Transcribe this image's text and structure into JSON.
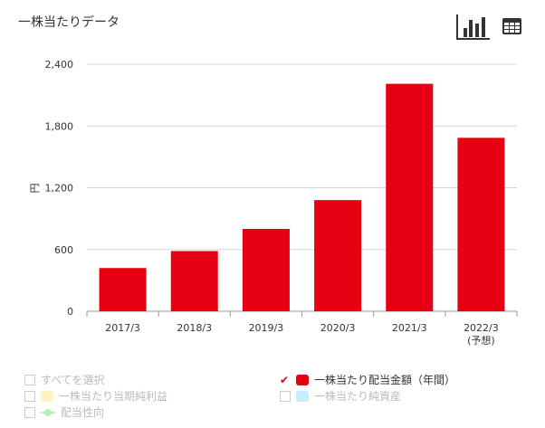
{
  "header": {
    "title": "一株当たりデータ",
    "chart_view_icon": "bar-chart-icon",
    "table_view_icon": "table-icon"
  },
  "chart_data": {
    "type": "bar",
    "title": "",
    "ylabel": "円",
    "xlabel": "",
    "ylim": [
      0,
      2400
    ],
    "yticks": [
      0,
      600,
      1200,
      1800,
      2400
    ],
    "ytick_labels": [
      "0",
      "600",
      "1,200",
      "1,800",
      "2,400"
    ],
    "grid": true,
    "categories": [
      "2017/3",
      "2018/3",
      "2019/3",
      "2020/3",
      "2021/3",
      "2022/3"
    ],
    "category_sublabels": [
      "",
      "",
      "",
      "",
      "",
      "(予想)"
    ],
    "series": [
      {
        "name": "一株当たり配当金額（年間）",
        "color": "#e60012",
        "values": [
          420,
          585,
          800,
          1080,
          2210,
          1685
        ]
      }
    ]
  },
  "legend": {
    "select_all": "すべてを選択",
    "items": [
      {
        "label": "一株当たり配当金額（年間）",
        "checked": true,
        "color": "#e60012"
      },
      {
        "label": "一株当たり当期純利益",
        "checked": false,
        "color": "#fff2c2"
      },
      {
        "label": "一株当たり純資産",
        "checked": false,
        "color": "#c7eefc"
      },
      {
        "label": "配当性向",
        "checked": false,
        "color": "#b5f0b5"
      }
    ]
  }
}
